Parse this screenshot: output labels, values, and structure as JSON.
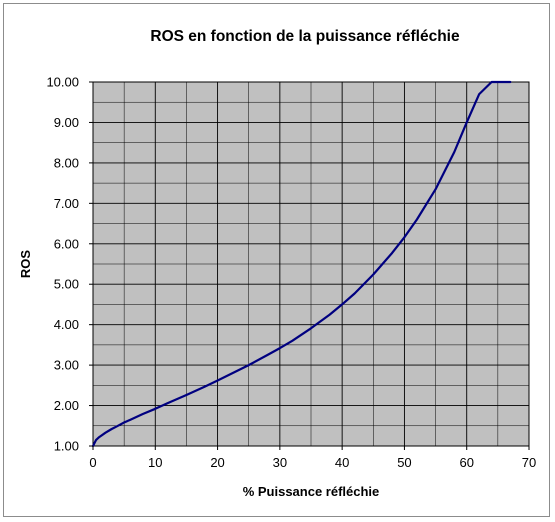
{
  "chart_data": {
    "type": "line",
    "title": "ROS en fonction de la puissance réfléchie",
    "xlabel": "% Puissance réfléchie",
    "ylabel": "ROS",
    "xlim": [
      0,
      70
    ],
    "ylim": [
      1,
      10
    ],
    "x_ticks": [
      "0",
      "10",
      "20",
      "30",
      "40",
      "50",
      "60",
      "70"
    ],
    "y_ticks": [
      "1.00",
      "2.00",
      "3.00",
      "4.00",
      "5.00",
      "6.00",
      "7.00",
      "8.00",
      "9.00",
      "10.00"
    ],
    "grid": true,
    "legend": "none",
    "plot_background": "#c0c0c0",
    "grid_color": "#000000",
    "line_color": "#000080",
    "series": [
      {
        "x": [
          0,
          0.5,
          1,
          2,
          3,
          4,
          5,
          6,
          8,
          10,
          12,
          15,
          18,
          20,
          22,
          25,
          28,
          30,
          32,
          35,
          38,
          40,
          42,
          45,
          48,
          50,
          52,
          55,
          58,
          60,
          62,
          64,
          65,
          66,
          67
        ],
        "values": [
          1.0,
          1.15,
          1.22,
          1.33,
          1.42,
          1.5,
          1.58,
          1.65,
          1.79,
          1.92,
          2.06,
          2.26,
          2.47,
          2.62,
          2.77,
          3.0,
          3.25,
          3.42,
          3.6,
          3.91,
          4.25,
          4.5,
          4.77,
          5.24,
          5.77,
          6.16,
          6.6,
          7.35,
          8.27,
          9.0,
          9.7,
          10.0,
          10.0,
          10.0,
          10.0
        ]
      }
    ]
  }
}
